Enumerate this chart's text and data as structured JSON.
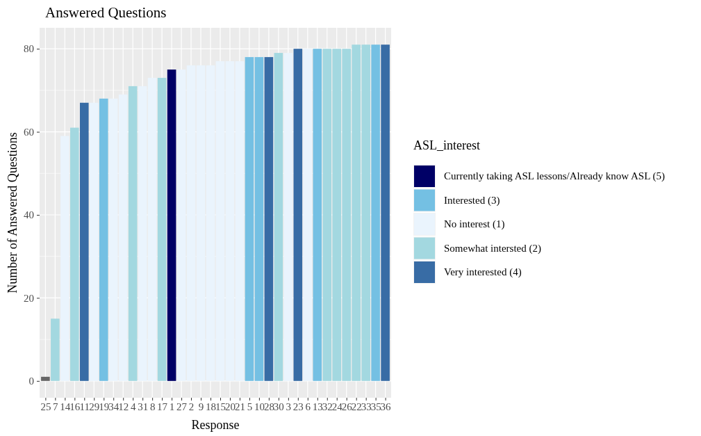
{
  "chart_data": {
    "type": "bar",
    "title": "Answered Questions",
    "xlabel": "Response",
    "ylabel": "Number of Answered Questions",
    "legend_title": "ASL_interest",
    "categories": [
      "25",
      "7",
      "14",
      "16",
      "11",
      "29",
      "19",
      "34",
      "12",
      "4",
      "31",
      "8",
      "17",
      "1",
      "27",
      "2",
      "9",
      "18",
      "15",
      "20",
      "21",
      "5",
      "10",
      "28",
      "30",
      "3",
      "23",
      "6",
      "13",
      "32",
      "24",
      "26",
      "22",
      "33",
      "35",
      "36"
    ],
    "series": [
      {
        "name": "Currently taking ASL lessons/Already know ASL (5)",
        "color": "#000066",
        "values": [
          null,
          null,
          null,
          null,
          null,
          null,
          null,
          null,
          null,
          null,
          null,
          null,
          null,
          75,
          null,
          null,
          null,
          null,
          null,
          null,
          null,
          null,
          null,
          null,
          null,
          null,
          null,
          null,
          null,
          null,
          null,
          null,
          null,
          null,
          null,
          null
        ]
      },
      {
        "name": "Interested (3)",
        "color": "#74c0e3",
        "values": [
          null,
          null,
          null,
          null,
          null,
          null,
          68,
          null,
          null,
          null,
          null,
          null,
          null,
          null,
          null,
          null,
          null,
          null,
          null,
          null,
          null,
          78,
          78,
          null,
          null,
          null,
          null,
          null,
          80,
          null,
          null,
          null,
          null,
          null,
          81,
          null
        ]
      },
      {
        "name": "No interest (1)",
        "color": "#eaf4fd",
        "values": [
          null,
          null,
          59,
          null,
          null,
          67,
          null,
          68,
          69,
          null,
          71,
          73,
          null,
          null,
          75,
          76,
          76,
          76,
          77,
          77,
          77,
          null,
          null,
          null,
          null,
          79,
          null,
          80,
          null,
          null,
          null,
          null,
          null,
          null,
          null,
          null
        ]
      },
      {
        "name": "Somewhat intersted (2)",
        "color": "#a3d8e0",
        "values": [
          null,
          15,
          null,
          61,
          null,
          null,
          null,
          null,
          null,
          71,
          null,
          null,
          73,
          null,
          null,
          null,
          null,
          null,
          null,
          null,
          null,
          null,
          null,
          null,
          79,
          null,
          null,
          null,
          null,
          80,
          80,
          80,
          81,
          81,
          null,
          null
        ]
      },
      {
        "name": "Very interested (4)",
        "color": "#386ca5",
        "values": [
          null,
          null,
          null,
          null,
          67,
          null,
          null,
          null,
          null,
          null,
          null,
          null,
          null,
          null,
          null,
          null,
          null,
          null,
          null,
          null,
          null,
          null,
          null,
          78,
          null,
          null,
          80,
          null,
          null,
          null,
          null,
          null,
          null,
          null,
          null,
          81
        ]
      },
      {
        "color": "#666666",
        "values": [
          1,
          null,
          null,
          null,
          null,
          null,
          null,
          null,
          null,
          null,
          null,
          null,
          null,
          null,
          null,
          null,
          null,
          null,
          null,
          null,
          null,
          null,
          null,
          null,
          null,
          null,
          null,
          null,
          null,
          null,
          null,
          null,
          null,
          null,
          null,
          null
        ]
      }
    ],
    "ylim": [
      -4.05,
      85.05
    ],
    "yticks": [
      0,
      20,
      40,
      60,
      80
    ],
    "grid": true,
    "legend": "right"
  }
}
